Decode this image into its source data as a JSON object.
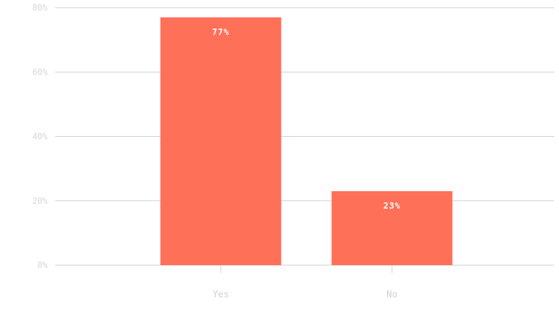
{
  "chart_data": {
    "type": "bar",
    "categories": [
      "Yes",
      "No"
    ],
    "values": [
      77,
      23
    ],
    "value_labels": [
      "77%",
      "23%"
    ],
    "y_tick_values": [
      0,
      20,
      40,
      60,
      80
    ],
    "y_tick_labels": [
      "0%",
      "20%",
      "40%",
      "60%",
      "80%"
    ],
    "ylim": [
      0,
      80
    ],
    "grid": true,
    "legend": "none",
    "colors": {
      "bar": "#ff7059",
      "grid": "#cfcfcf",
      "tick_text": "#d7d7d7",
      "data_label_text": "#ffffff"
    }
  }
}
